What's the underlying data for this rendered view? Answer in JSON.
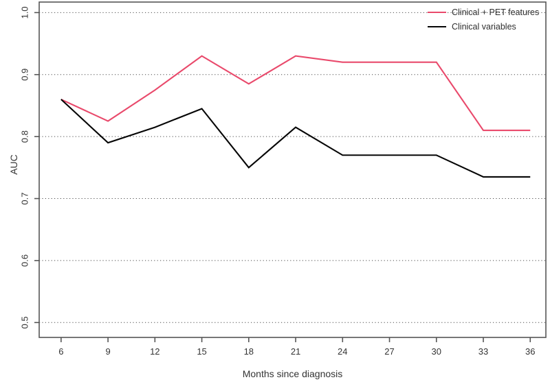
{
  "figure": {
    "background": "#ffffff",
    "axis_color": "#555555",
    "grid_color": "#4a4a4a",
    "text_color": "#333333"
  },
  "chart_data": {
    "type": "line",
    "title": "",
    "xlabel": "Months since diagnosis",
    "ylabel": "AUC",
    "x": [
      6,
      9,
      12,
      15,
      18,
      21,
      24,
      27,
      30,
      33,
      36
    ],
    "xtick_labels": [
      "6",
      "9",
      "12",
      "15",
      "18",
      "21",
      "24",
      "27",
      "30",
      "33",
      "36"
    ],
    "ytick_values": [
      0.5,
      0.6,
      0.7,
      0.8,
      0.9,
      1.0
    ],
    "ytick_labels": [
      "0.5",
      "0.6",
      "0.7",
      "0.8",
      "0.9",
      "1.0"
    ],
    "xlim": [
      4.6,
      37.0
    ],
    "ylim": [
      0.476,
      1.017
    ],
    "grid": "horizontal-dotted",
    "legend_position": "top-right",
    "series": [
      {
        "name": "Clinical + PET features",
        "color": "#e9496b",
        "values": [
          0.86,
          0.825,
          0.875,
          0.93,
          0.885,
          0.93,
          0.92,
          0.92,
          0.92,
          0.81,
          0.81
        ]
      },
      {
        "name": "Clinical variables",
        "color": "#050505",
        "values": [
          0.86,
          0.79,
          0.815,
          0.845,
          0.75,
          0.815,
          0.77,
          0.77,
          0.77,
          0.735,
          0.735
        ]
      }
    ]
  }
}
